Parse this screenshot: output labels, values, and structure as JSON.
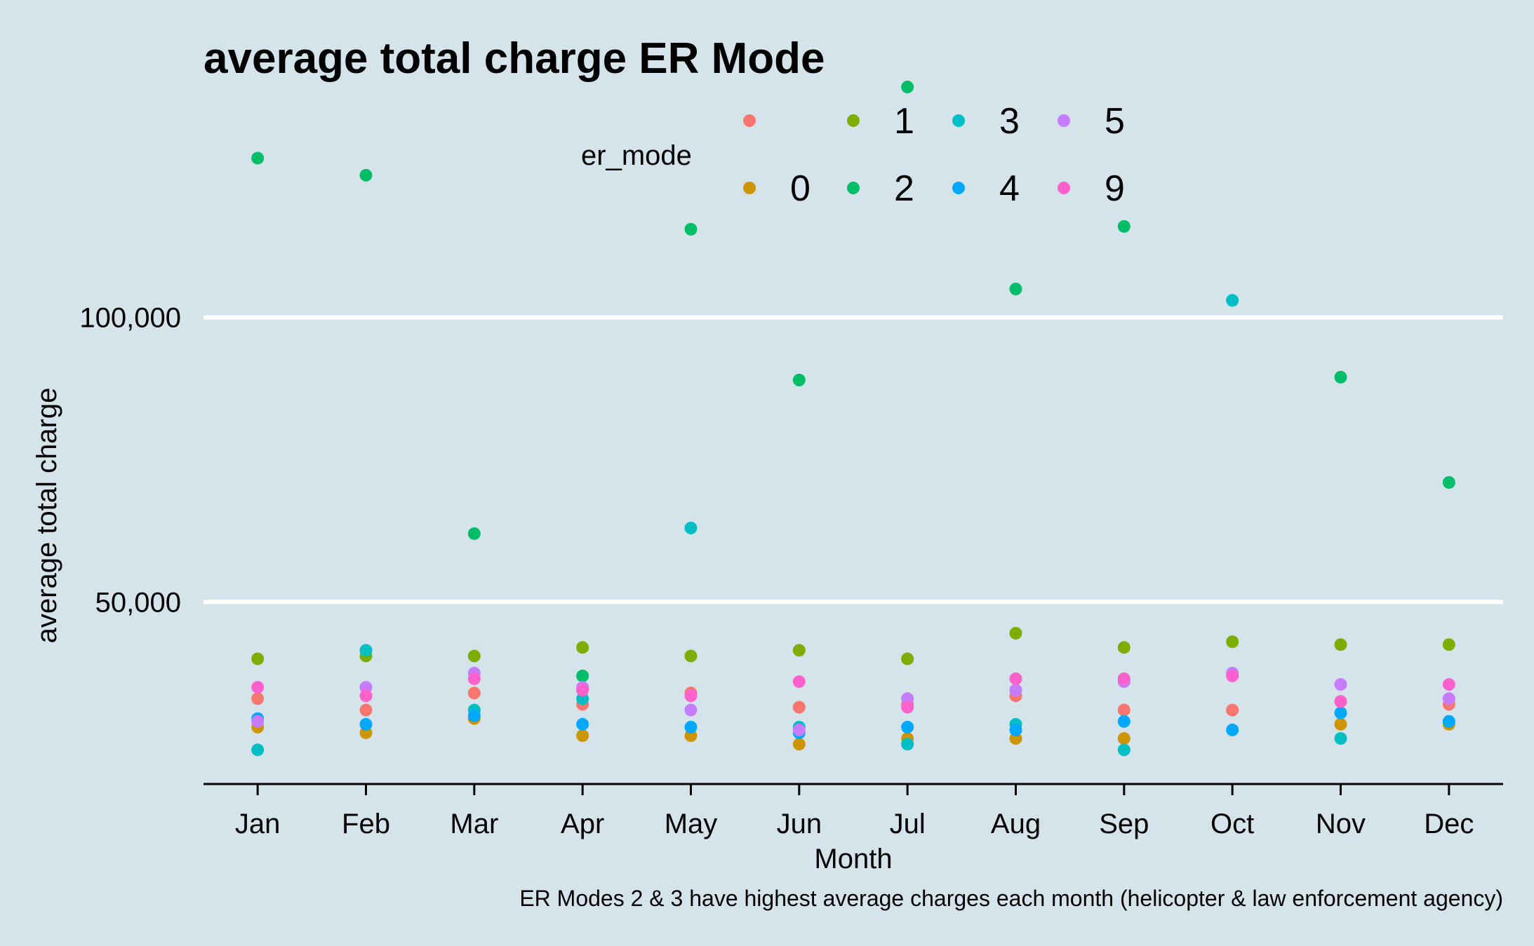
{
  "chart_data": {
    "type": "scatter",
    "title": "average total charge ER Mode",
    "xlabel": "Month",
    "ylabel": "average total charge",
    "caption": "ER Modes 2 & 3 have highest average charges each month (helicopter & law enforcement agency)",
    "categories": [
      "Jan",
      "Feb",
      "Mar",
      "Apr",
      "May",
      "Jun",
      "Jul",
      "Aug",
      "Sep",
      "Oct",
      "Nov",
      "Dec"
    ],
    "ylim": [
      18000,
      141000
    ],
    "y_ticks": [
      50000,
      100000
    ],
    "y_tick_labels": [
      "50,000",
      "100,000"
    ],
    "grid": "horizontal major lines",
    "background": "#d5e4eb",
    "legend": {
      "title": "er_mode",
      "position": "top",
      "entries": [
        "",
        "0",
        "1",
        "2",
        "3",
        "4",
        "5",
        "9"
      ]
    },
    "series": [
      {
        "name": "",
        "color": "#F8766D",
        "values": [
          33000,
          31000,
          34000,
          32000,
          34000,
          31500,
          32000,
          33500,
          31000,
          31000,
          32500,
          32000
        ]
      },
      {
        "name": "0",
        "color": "#CD9600",
        "values": [
          28000,
          27000,
          29500,
          26500,
          26500,
          25000,
          26000,
          26000,
          26000,
          null,
          28500,
          28500
        ]
      },
      {
        "name": "1",
        "color": "#7CAE00",
        "values": [
          40000,
          40500,
          40500,
          42000,
          40500,
          41500,
          40000,
          44500,
          42000,
          43000,
          42500,
          42500
        ]
      },
      {
        "name": "2",
        "color": "#00BE67",
        "values": [
          128000,
          125000,
          62000,
          37000,
          115500,
          89000,
          140500,
          105000,
          116000,
          null,
          89500,
          71000
        ]
      },
      {
        "name": "3",
        "color": "#00BFC4",
        "values": [
          24000,
          41500,
          31000,
          33000,
          63000,
          28000,
          25000,
          28500,
          24000,
          103000,
          26000,
          29000
        ]
      },
      {
        "name": "4",
        "color": "#00A9FF",
        "values": [
          29500,
          28500,
          30000,
          28500,
          28000,
          27000,
          28000,
          27500,
          29000,
          27500,
          30500,
          29000
        ]
      },
      {
        "name": "5",
        "color": "#C77CFF",
        "values": [
          29000,
          35000,
          37500,
          35000,
          31000,
          27500,
          33000,
          34500,
          36000,
          37500,
          35500,
          33000
        ]
      },
      {
        "name": "9",
        "color": "#FF61CC",
        "values": [
          35000,
          33500,
          36500,
          34500,
          33500,
          36000,
          31500,
          36500,
          36500,
          37000,
          32500,
          35500
        ]
      }
    ]
  }
}
